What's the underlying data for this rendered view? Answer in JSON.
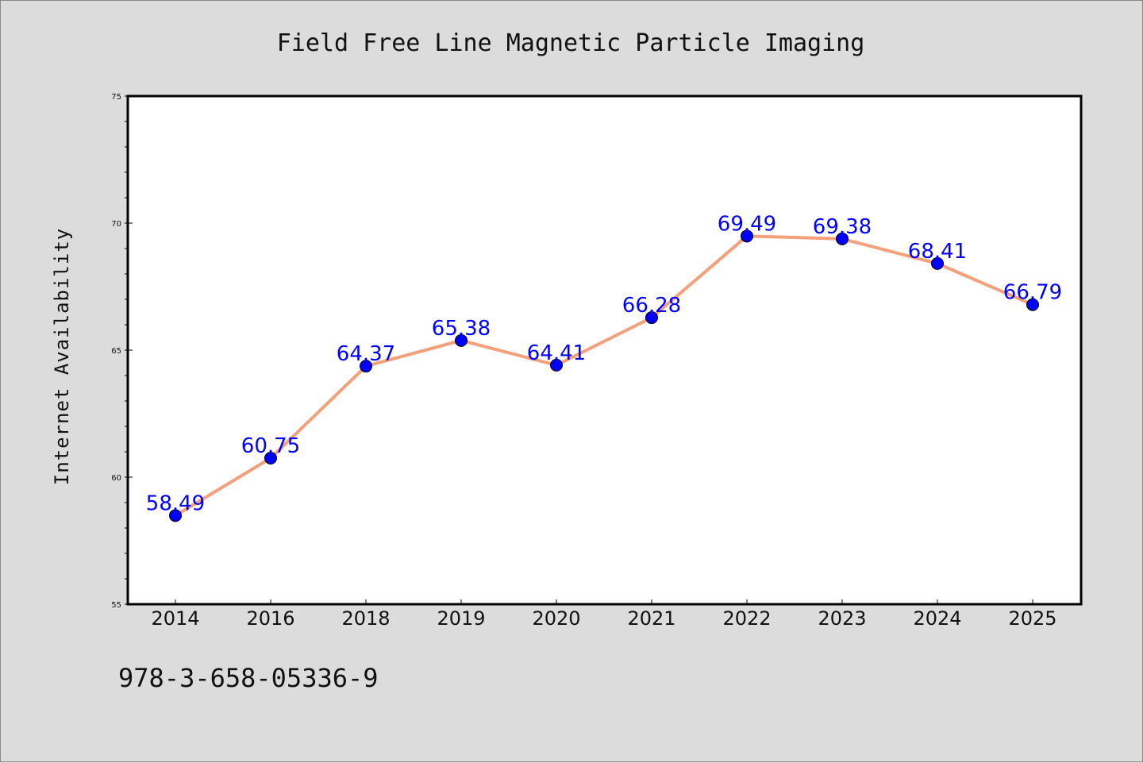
{
  "footer_code": "978-3-658-05336-9",
  "colors": {
    "background": "#dcdcdc",
    "plot_background": "#ffffff",
    "line": "#f4a07a",
    "marker": "#0000ff",
    "data_label": "#0000ff"
  },
  "chart_data": {
    "type": "line",
    "title": "Field Free Line Magnetic Particle Imaging",
    "xlabel": "",
    "ylabel": "Internet Availability",
    "categories": [
      "2014",
      "2016",
      "2018",
      "2019",
      "2020",
      "2021",
      "2022",
      "2023",
      "2024",
      "2025"
    ],
    "series": [
      {
        "values": [
          58.49,
          60.75,
          64.37,
          65.38,
          64.41,
          66.28,
          69.49,
          69.38,
          68.41,
          66.79
        ],
        "labels": [
          "58.49",
          "60.75",
          "64.37",
          "65.38",
          "64.41",
          "66.28",
          "69.49",
          "69.38",
          "68.41",
          "66.79"
        ]
      }
    ],
    "ylim": [
      55,
      75
    ],
    "yticks": [
      "55",
      "60",
      "65",
      "70",
      "75"
    ],
    "grid": false,
    "legend": "none"
  }
}
